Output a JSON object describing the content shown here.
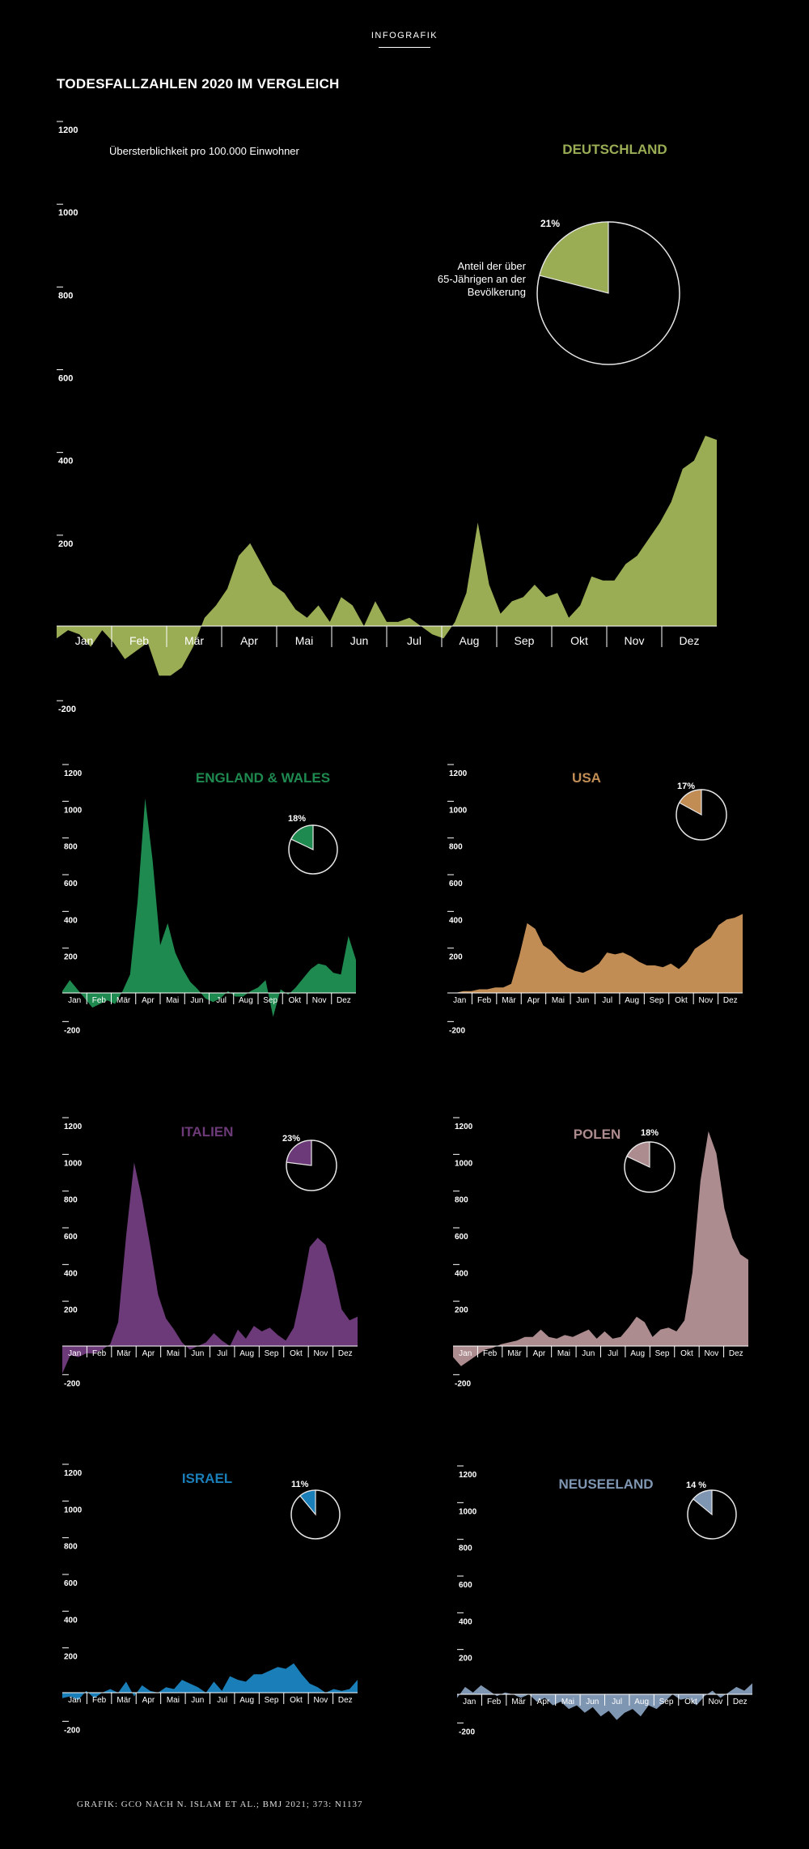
{
  "header": {
    "kicker": "INFOGRAFIK",
    "title": "TODESFALLZAHLEN 2020 IM VERGLEICH"
  },
  "footer": {
    "credit": "GRAFIK: GCO NACH N. ISLAM ET AL.; BMJ 2021; 373: N1137"
  },
  "chart_data": [
    {
      "type": "area",
      "country": "DEUTSCHLAND",
      "color": "#9aad55",
      "subtitle": "Übersterblichkeit pro 100.000 Einwohner",
      "pie_label": "Anteil der über 65-Jährigen an der Bevölkerung",
      "pie_share": 0.21,
      "pie_share_text": "21%",
      "ylim": [
        -200,
        1200
      ],
      "y_ticks": [
        1200,
        1000,
        800,
        600,
        400,
        200,
        -200
      ],
      "months": [
        "Jan",
        "Feb",
        "Mär",
        "Apr",
        "Mai",
        "Jun",
        "Jul",
        "Aug",
        "Sep",
        "Okt",
        "Nov",
        "Dez"
      ],
      "values": [
        -30,
        -10,
        -20,
        -50,
        -10,
        -40,
        -80,
        -60,
        -40,
        -120,
        -120,
        -100,
        -50,
        20,
        50,
        90,
        170,
        200,
        150,
        100,
        80,
        40,
        20,
        50,
        10,
        70,
        50,
        0,
        60,
        10,
        10,
        20,
        0,
        -20,
        -30,
        10,
        80,
        250,
        100,
        30,
        60,
        70,
        100,
        70,
        80,
        20,
        50,
        120,
        110,
        110,
        150,
        170,
        210,
        250,
        300,
        380,
        400,
        460,
        450
      ]
    },
    {
      "type": "area",
      "country": "ENGLAND & WALES",
      "color": "#1f8a50",
      "pie_share": 0.18,
      "pie_share_text": "18%",
      "ylim": [
        -200,
        1200
      ],
      "y_ticks": [
        1200,
        1000,
        800,
        600,
        400,
        200,
        -200
      ],
      "months": [
        "Jan",
        "Feb",
        "Mär",
        "Apr",
        "Mai",
        "Jun",
        "Jul",
        "Aug",
        "Sep",
        "Okt",
        "Nov",
        "Dez"
      ],
      "values": [
        10,
        70,
        20,
        -30,
        -80,
        -60,
        -40,
        -60,
        10,
        100,
        500,
        1060,
        720,
        260,
        380,
        220,
        130,
        60,
        20,
        -30,
        -50,
        -30,
        10,
        -20,
        -20,
        10,
        30,
        70,
        -130,
        20,
        -10,
        30,
        80,
        130,
        160,
        150,
        110,
        100,
        310,
        180
      ]
    },
    {
      "type": "area",
      "country": "USA",
      "color": "#c18d55",
      "pie_share": 0.17,
      "pie_share_text": "17%",
      "ylim": [
        -200,
        1200
      ],
      "y_ticks": [
        1200,
        1000,
        800,
        600,
        400,
        200,
        -200
      ],
      "months": [
        "Jan",
        "Feb",
        "Mär",
        "Apr",
        "Mai",
        "Jun",
        "Jul",
        "Aug",
        "Sep",
        "Okt",
        "Nov",
        "Dez"
      ],
      "values": [
        0,
        0,
        10,
        10,
        20,
        20,
        30,
        30,
        50,
        200,
        380,
        350,
        260,
        230,
        180,
        140,
        120,
        110,
        130,
        160,
        220,
        210,
        220,
        200,
        170,
        150,
        150,
        140,
        160,
        130,
        170,
        240,
        270,
        300,
        370,
        400,
        410,
        430
      ]
    },
    {
      "type": "area",
      "country": "ITALIEN",
      "color": "#6c3a78",
      "pie_share": 0.23,
      "pie_share_text": "23%",
      "ylim": [
        -200,
        1200
      ],
      "y_ticks": [
        1200,
        1000,
        800,
        600,
        400,
        200,
        -200
      ],
      "months": [
        "Jan",
        "Feb",
        "Mär",
        "Apr",
        "Mai",
        "Jun",
        "Jul",
        "Aug",
        "Sep",
        "Okt",
        "Nov",
        "Dez"
      ],
      "values": [
        -150,
        -50,
        -60,
        -40,
        -40,
        -20,
        10,
        130,
        600,
        1000,
        800,
        550,
        280,
        150,
        90,
        20,
        -20,
        0,
        20,
        70,
        30,
        0,
        90,
        40,
        110,
        80,
        100,
        60,
        30,
        100,
        300,
        540,
        590,
        550,
        400,
        200,
        140,
        160
      ]
    },
    {
      "type": "area",
      "country": "POLEN",
      "color": "#ad8c8f",
      "pie_share": 0.18,
      "pie_share_text": "18%",
      "ylim": [
        -200,
        1200
      ],
      "y_ticks": [
        1200,
        1000,
        800,
        600,
        400,
        200,
        -200
      ],
      "months": [
        "Jan",
        "Feb",
        "Mär",
        "Apr",
        "Mai",
        "Jun",
        "Jul",
        "Aug",
        "Sep",
        "Okt",
        "Nov",
        "Dez"
      ],
      "values": [
        -60,
        -110,
        -80,
        -50,
        -20,
        -10,
        10,
        20,
        30,
        50,
        50,
        90,
        50,
        40,
        60,
        50,
        70,
        90,
        40,
        80,
        40,
        50,
        100,
        160,
        130,
        50,
        90,
        100,
        80,
        140,
        400,
        900,
        1170,
        1050,
        750,
        590,
        500,
        470
      ]
    },
    {
      "type": "area",
      "country": "ISRAEL",
      "color": "#1a7fb8",
      "pie_share": 0.11,
      "pie_share_text": "11%",
      "ylim": [
        -200,
        1200
      ],
      "y_ticks": [
        1200,
        1000,
        800,
        600,
        400,
        200,
        -200
      ],
      "months": [
        "Jan",
        "Feb",
        "Mär",
        "Apr",
        "Mai",
        "Jun",
        "Jul",
        "Aug",
        "Sep",
        "Okt",
        "Nov",
        "Dez"
      ],
      "values": [
        -30,
        -20,
        -40,
        10,
        -30,
        0,
        20,
        0,
        60,
        -20,
        40,
        10,
        0,
        30,
        20,
        70,
        50,
        30,
        0,
        60,
        10,
        90,
        70,
        60,
        100,
        100,
        120,
        140,
        130,
        160,
        100,
        50,
        30,
        0,
        20,
        10,
        20,
        70
      ]
    },
    {
      "type": "area",
      "country": "NEUSEELAND",
      "color": "#7f96b3",
      "pie_share": 0.14,
      "pie_share_text": "14 %",
      "ylim": [
        -200,
        1200
      ],
      "y_ticks": [
        1200,
        1000,
        800,
        600,
        400,
        200,
        -200
      ],
      "months": [
        "Jan",
        "Feb",
        "Mär",
        "Apr",
        "Mai",
        "Jun",
        "Jul",
        "Aug",
        "Sep",
        "Okt",
        "Nov",
        "Dez"
      ],
      "values": [
        -20,
        40,
        10,
        50,
        20,
        -10,
        10,
        0,
        -20,
        0,
        -40,
        -20,
        -60,
        -40,
        -80,
        -60,
        -100,
        -70,
        -120,
        -90,
        -140,
        -100,
        -80,
        -120,
        -60,
        -80,
        -40,
        0,
        -30,
        -20,
        -60,
        -10,
        20,
        -20,
        10,
        40,
        20,
        60
      ]
    }
  ]
}
